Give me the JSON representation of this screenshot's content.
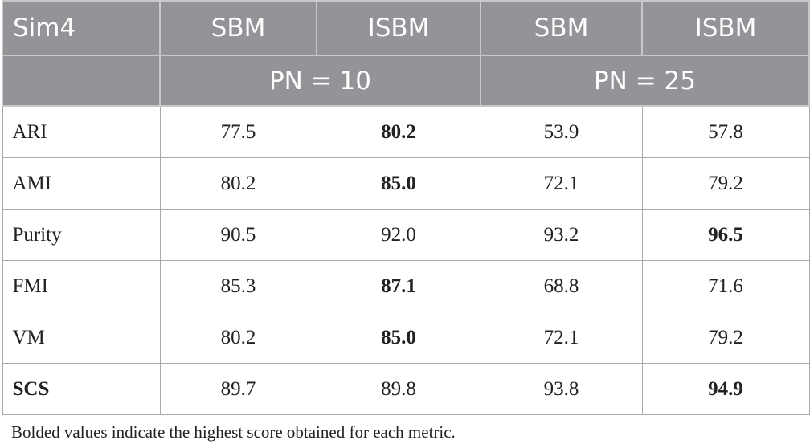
{
  "table": {
    "header": [
      "Sim4",
      "SBM",
      "ISBM",
      "SBM",
      "ISBM"
    ],
    "groups": [
      "PN = 10",
      "PN = 25"
    ],
    "rows": [
      {
        "cells": [
          "ARI",
          "77.5",
          "80.2",
          "53.9",
          "57.8"
        ],
        "bold": [
          false,
          false,
          true,
          false,
          false
        ]
      },
      {
        "cells": [
          "AMI",
          "80.2",
          "85.0",
          "72.1",
          "79.2"
        ],
        "bold": [
          false,
          false,
          true,
          false,
          false
        ]
      },
      {
        "cells": [
          "Purity",
          "90.5",
          "92.0",
          "93.2",
          "96.5"
        ],
        "bold": [
          false,
          false,
          false,
          false,
          true
        ]
      },
      {
        "cells": [
          "FMI",
          "85.3",
          "87.1",
          "68.8",
          "71.6"
        ],
        "bold": [
          false,
          false,
          true,
          false,
          false
        ]
      },
      {
        "cells": [
          "VM",
          "80.2",
          "85.0",
          "72.1",
          "79.2"
        ],
        "bold": [
          false,
          false,
          true,
          false,
          false
        ]
      },
      {
        "cells": [
          "SCS",
          "89.7",
          "89.8",
          "93.8",
          "94.9"
        ],
        "bold": [
          true,
          false,
          false,
          false,
          true
        ]
      }
    ]
  },
  "footnote": "Bolded values indicate the highest score obtained for each metric."
}
